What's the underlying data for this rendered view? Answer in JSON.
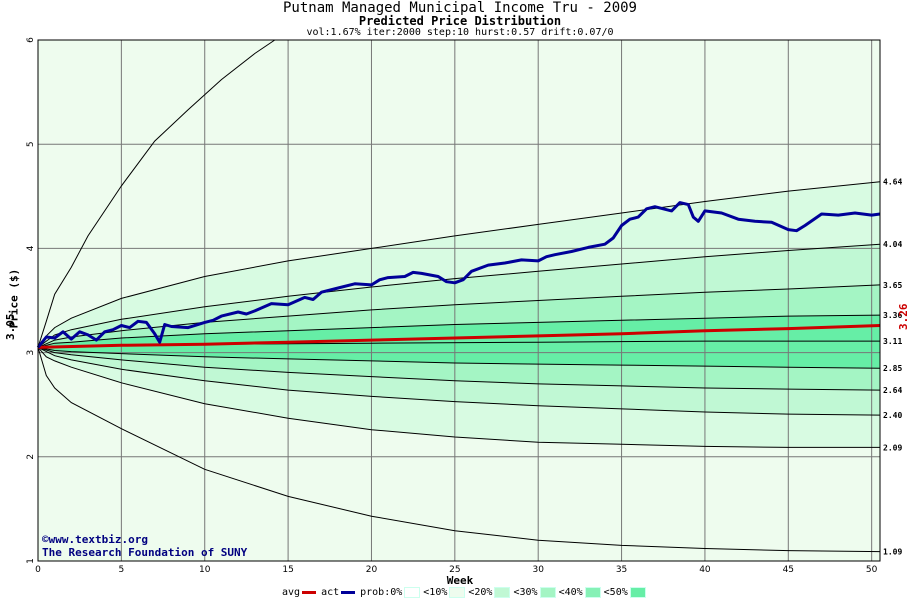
{
  "header": {
    "title": "Putnam Managed Municipal Income Tru - 2009",
    "subtitle": "Predicted Price Distribution",
    "params": "vol:1.67% iter:2000 step:10 hurst:0.57 drift:0.07/0"
  },
  "credits": {
    "line1": "©www.textbiz.org",
    "line2": "The Research Foundation of SUNY"
  },
  "start_value": "3.05",
  "end_value": "3.26",
  "legend": {
    "avg": "avg",
    "act": "act",
    "prob": "prob:0%",
    "b10": "<10%",
    "b20": "<20%",
    "b30": "<30%",
    "b40": "<40%",
    "b50": "<50%"
  },
  "colors": {
    "avg": "#cc0000",
    "act": "#000099",
    "band_outer": "#eefcee",
    "band10": "#d8fbe2",
    "band20": "#c0f8d4",
    "band30": "#a4f5c4",
    "band40": "#86f1b6",
    "band50": "#66eea6",
    "grid": "#777777"
  },
  "chart_data": {
    "type": "line",
    "title": "Putnam Managed Municipal Income Tru - 2009",
    "subtitle": "Predicted Price Distribution",
    "xlabel": "Week",
    "ylabel": "Price ($)",
    "xlim": [
      0,
      50.5
    ],
    "ylim": [
      1,
      6
    ],
    "x_ticks": [
      0,
      5,
      10,
      15,
      20,
      25,
      30,
      35,
      40,
      45,
      50
    ],
    "y_ticks": [
      1,
      2,
      3,
      4,
      5,
      6
    ],
    "grid": true,
    "start": 3.05,
    "percentile_curves": [
      {
        "end": 1.09,
        "points": [
          [
            0,
            3.05
          ],
          [
            0.5,
            2.78
          ],
          [
            1,
            2.66
          ],
          [
            2,
            2.52
          ],
          [
            5,
            2.27
          ],
          [
            10,
            1.88
          ],
          [
            15,
            1.62
          ],
          [
            20,
            1.43
          ],
          [
            25,
            1.29
          ],
          [
            30,
            1.2
          ],
          [
            35,
            1.15
          ],
          [
            40,
            1.12
          ],
          [
            45,
            1.1
          ],
          [
            50.5,
            1.09
          ]
        ]
      },
      {
        "end": 2.09,
        "points": [
          [
            0,
            3.05
          ],
          [
            0.5,
            2.96
          ],
          [
            1,
            2.92
          ],
          [
            2,
            2.86
          ],
          [
            5,
            2.71
          ],
          [
            10,
            2.51
          ],
          [
            15,
            2.37
          ],
          [
            20,
            2.26
          ],
          [
            25,
            2.19
          ],
          [
            30,
            2.14
          ],
          [
            35,
            2.12
          ],
          [
            40,
            2.1
          ],
          [
            45,
            2.09
          ],
          [
            50.5,
            2.09
          ]
        ]
      },
      {
        "end": 2.4,
        "points": [
          [
            0,
            3.05
          ],
          [
            1,
            2.97
          ],
          [
            2,
            2.93
          ],
          [
            5,
            2.84
          ],
          [
            10,
            2.73
          ],
          [
            15,
            2.64
          ],
          [
            20,
            2.58
          ],
          [
            25,
            2.53
          ],
          [
            30,
            2.49
          ],
          [
            35,
            2.46
          ],
          [
            40,
            2.43
          ],
          [
            45,
            2.41
          ],
          [
            50.5,
            2.4
          ]
        ]
      },
      {
        "end": 2.64,
        "points": [
          [
            0,
            3.05
          ],
          [
            1,
            3.0
          ],
          [
            2,
            2.98
          ],
          [
            5,
            2.93
          ],
          [
            10,
            2.86
          ],
          [
            15,
            2.81
          ],
          [
            20,
            2.77
          ],
          [
            25,
            2.73
          ],
          [
            30,
            2.7
          ],
          [
            35,
            2.68
          ],
          [
            40,
            2.66
          ],
          [
            45,
            2.65
          ],
          [
            50.5,
            2.64
          ]
        ]
      },
      {
        "end": 2.85,
        "points": [
          [
            0,
            3.05
          ],
          [
            1,
            3.02
          ],
          [
            2,
            3.01
          ],
          [
            5,
            2.99
          ],
          [
            10,
            2.96
          ],
          [
            15,
            2.94
          ],
          [
            20,
            2.92
          ],
          [
            25,
            2.9
          ],
          [
            30,
            2.89
          ],
          [
            35,
            2.88
          ],
          [
            40,
            2.87
          ],
          [
            45,
            2.86
          ],
          [
            50.5,
            2.85
          ]
        ]
      },
      {
        "end": 3.11,
        "points": [
          [
            0,
            3.05
          ],
          [
            1,
            3.06
          ],
          [
            5,
            3.07
          ],
          [
            10,
            3.08
          ],
          [
            20,
            3.09
          ],
          [
            30,
            3.1
          ],
          [
            40,
            3.11
          ],
          [
            50.5,
            3.11
          ]
        ]
      },
      {
        "end": 3.36,
        "points": [
          [
            0,
            3.05
          ],
          [
            1,
            3.09
          ],
          [
            2,
            3.1
          ],
          [
            5,
            3.14
          ],
          [
            10,
            3.18
          ],
          [
            15,
            3.21
          ],
          [
            20,
            3.24
          ],
          [
            25,
            3.27
          ],
          [
            30,
            3.29
          ],
          [
            35,
            3.31
          ],
          [
            40,
            3.33
          ],
          [
            45,
            3.35
          ],
          [
            50.5,
            3.36
          ]
        ]
      },
      {
        "end": 3.65,
        "points": [
          [
            0,
            3.05
          ],
          [
            1,
            3.12
          ],
          [
            2,
            3.15
          ],
          [
            5,
            3.21
          ],
          [
            10,
            3.29
          ],
          [
            15,
            3.35
          ],
          [
            20,
            3.41
          ],
          [
            25,
            3.46
          ],
          [
            30,
            3.5
          ],
          [
            35,
            3.54
          ],
          [
            40,
            3.58
          ],
          [
            45,
            3.61
          ],
          [
            50.5,
            3.65
          ]
        ]
      },
      {
        "end": 4.04,
        "points": [
          [
            0,
            3.05
          ],
          [
            1,
            3.17
          ],
          [
            2,
            3.22
          ],
          [
            5,
            3.32
          ],
          [
            10,
            3.44
          ],
          [
            15,
            3.54
          ],
          [
            20,
            3.63
          ],
          [
            25,
            3.71
          ],
          [
            30,
            3.78
          ],
          [
            35,
            3.85
          ],
          [
            40,
            3.92
          ],
          [
            45,
            3.98
          ],
          [
            50.5,
            4.04
          ]
        ]
      },
      {
        "end": 4.64,
        "points": [
          [
            0,
            3.05
          ],
          [
            0.5,
            3.16
          ],
          [
            1,
            3.24
          ],
          [
            2,
            3.33
          ],
          [
            5,
            3.52
          ],
          [
            10,
            3.73
          ],
          [
            15,
            3.88
          ],
          [
            20,
            4.0
          ],
          [
            25,
            4.12
          ],
          [
            30,
            4.23
          ],
          [
            35,
            4.34
          ],
          [
            40,
            4.45
          ],
          [
            45,
            4.55
          ],
          [
            50.5,
            4.64
          ]
        ]
      },
      {
        "end": null,
        "points": [
          [
            0,
            3.05
          ],
          [
            0.5,
            3.3
          ],
          [
            1,
            3.56
          ],
          [
            2,
            3.82
          ],
          [
            3,
            4.12
          ],
          [
            5,
            4.6
          ],
          [
            7,
            5.03
          ],
          [
            9,
            5.33
          ],
          [
            11,
            5.62
          ],
          [
            13,
            5.87
          ],
          [
            14.2,
            6.0
          ]
        ]
      }
    ],
    "band_labels": [
      "1.09",
      "2.09",
      "2.40",
      "2.64",
      "2.85",
      "3.11",
      "3.36",
      "3.65",
      "4.04",
      "4.64"
    ],
    "series": [
      {
        "name": "avg",
        "x": [
          0,
          5,
          10,
          15,
          20,
          25,
          30,
          35,
          40,
          45,
          50.5
        ],
        "values": [
          3.05,
          3.07,
          3.08,
          3.1,
          3.12,
          3.14,
          3.16,
          3.18,
          3.21,
          3.23,
          3.26
        ]
      },
      {
        "name": "act",
        "x": [
          0,
          0.5,
          1,
          1.5,
          2,
          2.5,
          3,
          3.5,
          4,
          4.5,
          5,
          5.5,
          6,
          6.5,
          7,
          7.3,
          7.6,
          8,
          9,
          10,
          10.5,
          11,
          12,
          12.5,
          13,
          14,
          15,
          16,
          16.5,
          17,
          18,
          19,
          20,
          20.5,
          21,
          22,
          22.5,
          23,
          24,
          24.5,
          25,
          25.5,
          26,
          27,
          28,
          29,
          30,
          30.5,
          31,
          32,
          33,
          34,
          34.5,
          35,
          35.5,
          36,
          36.5,
          37,
          37.5,
          38,
          38.5,
          39,
          39.3,
          39.6,
          40,
          41,
          42,
          43,
          44,
          45,
          45.5,
          46,
          47,
          48,
          49,
          50,
          50.5
        ],
        "values": [
          3.05,
          3.15,
          3.14,
          3.2,
          3.13,
          3.2,
          3.17,
          3.12,
          3.2,
          3.22,
          3.26,
          3.24,
          3.3,
          3.29,
          3.18,
          3.1,
          3.27,
          3.25,
          3.24,
          3.29,
          3.31,
          3.35,
          3.39,
          3.37,
          3.4,
          3.47,
          3.46,
          3.53,
          3.51,
          3.58,
          3.62,
          3.66,
          3.65,
          3.7,
          3.72,
          3.73,
          3.77,
          3.76,
          3.73,
          3.68,
          3.67,
          3.7,
          3.78,
          3.84,
          3.86,
          3.89,
          3.88,
          3.92,
          3.94,
          3.97,
          4.01,
          4.04,
          4.1,
          4.22,
          4.28,
          4.3,
          4.38,
          4.4,
          4.38,
          4.36,
          4.44,
          4.42,
          4.3,
          4.26,
          4.36,
          4.34,
          4.28,
          4.26,
          4.25,
          4.18,
          4.17,
          4.22,
          4.33,
          4.32,
          4.34,
          4.32,
          4.33
        ]
      }
    ]
  }
}
